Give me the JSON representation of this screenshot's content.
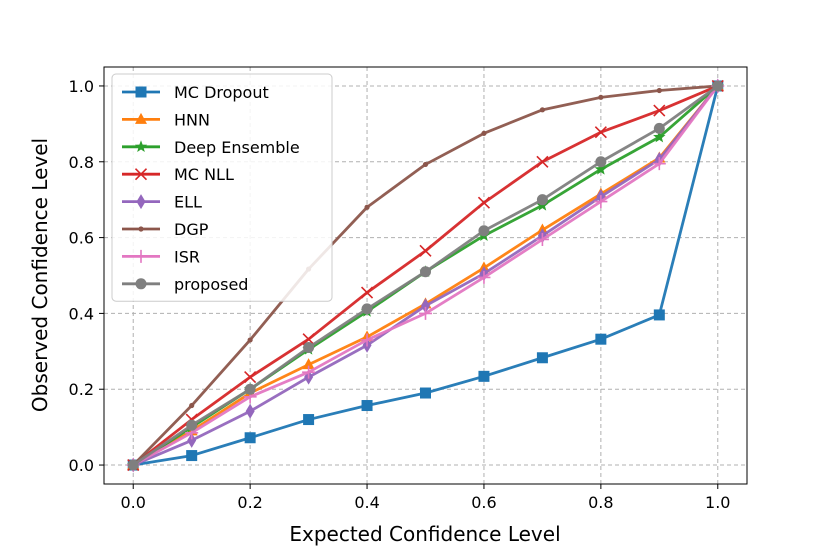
{
  "chart_data": {
    "type": "line",
    "title": "",
    "xlabel": "Expected Confidence Level",
    "ylabel": "Observed Confidence Level",
    "xlim": [
      -0.05,
      1.05
    ],
    "ylim": [
      -0.05,
      1.05
    ],
    "grid": true,
    "legend_position": "top-left",
    "x": [
      0.0,
      0.1,
      0.2,
      0.3,
      0.4,
      0.5,
      0.6,
      0.7,
      0.8,
      0.9,
      1.0
    ],
    "xticks": [
      "0.0",
      "0.2",
      "0.4",
      "0.6",
      "0.8",
      "1.0"
    ],
    "yticks": [
      "0.0",
      "0.2",
      "0.4",
      "0.6",
      "0.8",
      "1.0"
    ],
    "series": [
      {
        "name": "MC Dropout",
        "color": "#1f77b4",
        "marker": "square",
        "values": [
          0.0,
          0.025,
          0.072,
          0.12,
          0.157,
          0.19,
          0.234,
          0.283,
          0.332,
          0.396,
          1.0
        ]
      },
      {
        "name": "HNN",
        "color": "#ff7f0e",
        "marker": "triangle",
        "values": [
          0.0,
          0.09,
          0.19,
          0.265,
          0.338,
          0.425,
          0.52,
          0.62,
          0.715,
          0.81,
          1.0
        ]
      },
      {
        "name": "Deep Ensemble",
        "color": "#2ca02c",
        "marker": "star",
        "values": [
          0.0,
          0.1,
          0.2,
          0.305,
          0.405,
          0.51,
          0.605,
          0.685,
          0.78,
          0.865,
          1.0
        ]
      },
      {
        "name": "MC NLL",
        "color": "#d62728",
        "marker": "x",
        "values": [
          0.0,
          0.12,
          0.232,
          0.332,
          0.455,
          0.565,
          0.692,
          0.8,
          0.878,
          0.935,
          1.0
        ]
      },
      {
        "name": "ELL",
        "color": "#9467bd",
        "marker": "diamond",
        "values": [
          0.0,
          0.065,
          0.142,
          0.232,
          0.316,
          0.42,
          0.505,
          0.605,
          0.708,
          0.806,
          1.0
        ]
      },
      {
        "name": "DGP",
        "color": "#8c564b",
        "marker": "dot",
        "values": [
          0.0,
          0.157,
          0.33,
          0.517,
          0.68,
          0.793,
          0.875,
          0.937,
          0.97,
          0.988,
          1.0
        ]
      },
      {
        "name": "ISR",
        "color": "#e377c2",
        "marker": "plus",
        "values": [
          0.0,
          0.085,
          0.18,
          0.245,
          0.33,
          0.4,
          0.495,
          0.595,
          0.695,
          0.795,
          1.0
        ]
      },
      {
        "name": "proposed",
        "color": "#7f7f7f",
        "marker": "circle",
        "values": [
          0.0,
          0.105,
          0.2,
          0.31,
          0.412,
          0.51,
          0.618,
          0.7,
          0.8,
          0.888,
          1.0
        ]
      }
    ]
  }
}
